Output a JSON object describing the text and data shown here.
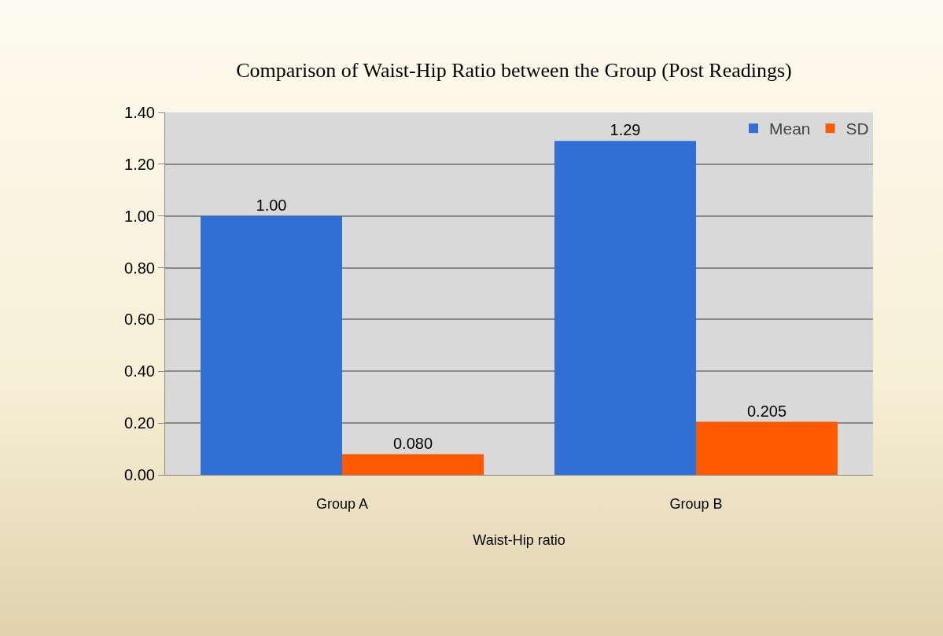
{
  "chart_data": {
    "type": "bar",
    "title": "Comparison of Waist-Hip Ratio between the Group (Post Readings)",
    "xlabel": "Waist-Hip ratio",
    "categories": [
      "Group A",
      "Group B"
    ],
    "series": [
      {
        "name": "Mean",
        "color": "#2f6fd6",
        "values": [
          1.0,
          1.29
        ],
        "value_labels": [
          "1.00",
          "1.29"
        ]
      },
      {
        "name": "SD",
        "color": "#ff5a00",
        "values": [
          0.08,
          0.205
        ],
        "value_labels": [
          "0.080",
          "0.205"
        ]
      }
    ],
    "ylim": [
      0,
      1.4
    ],
    "yticks": [
      {
        "value": 0,
        "label": "0.00"
      },
      {
        "value": 0.2,
        "label": "0.20"
      },
      {
        "value": 0.4,
        "label": "0.40"
      },
      {
        "value": 0.6,
        "label": "0.60"
      },
      {
        "value": 0.8,
        "label": "0.80"
      },
      {
        "value": 1,
        "label": "1.00"
      },
      {
        "value": 1.2,
        "label": "1.20"
      },
      {
        "value": 1.4,
        "label": "1.40"
      }
    ],
    "grid": "y",
    "legend": "top right"
  }
}
